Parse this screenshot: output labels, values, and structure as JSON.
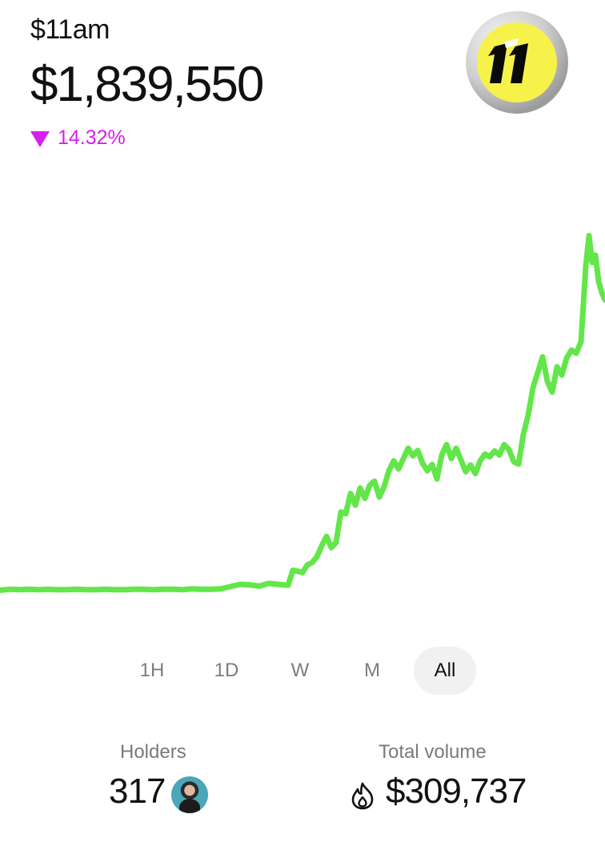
{
  "header": {
    "ticker": "$11am",
    "price": "$1,839,550",
    "change_pct": "14.32%",
    "change_direction": "down",
    "change_color": "#d81ff0",
    "logo_icon": "number-11-badge-icon"
  },
  "chart_data": {
    "type": "line",
    "line_color": "#63e64a",
    "grid": false,
    "x": [
      0,
      12,
      24,
      36,
      48,
      60,
      72,
      84,
      96,
      108,
      120,
      132,
      144,
      156,
      168,
      180,
      192,
      204,
      216,
      228,
      240,
      252,
      264,
      276,
      288,
      300,
      312,
      324,
      336,
      348,
      360,
      366,
      372,
      378,
      384,
      390,
      396,
      402,
      408,
      414,
      420,
      426,
      432,
      438,
      444,
      450,
      456,
      462,
      468,
      474,
      480,
      486,
      492,
      498,
      504,
      510,
      516,
      522,
      528,
      534,
      540,
      546,
      552,
      558,
      564,
      570,
      576,
      582,
      588,
      594,
      600,
      606,
      612,
      618,
      624,
      630,
      636,
      642,
      648,
      654,
      660,
      666,
      672,
      678,
      684,
      690,
      696,
      702,
      708,
      714,
      720,
      726,
      732,
      736,
      740,
      744,
      748,
      752,
      756
    ],
    "y": [
      4,
      4.2,
      4.1,
      4.2,
      4.1,
      4.2,
      4.1,
      4.1,
      4.2,
      4.1,
      4.1,
      4.2,
      4.1,
      4.1,
      4.2,
      4.2,
      4.1,
      4.2,
      4.2,
      4.1,
      4.3,
      4.2,
      4.2,
      4.3,
      4.8,
      5.3,
      5.2,
      4.9,
      5.5,
      5.3,
      5.1,
      8.4,
      8.2,
      7.9,
      9.6,
      10.1,
      11.4,
      13.8,
      15.9,
      13.4,
      14.6,
      21.3,
      20.9,
      25.4,
      22.8,
      26.6,
      24.3,
      27.2,
      28.1,
      24.6,
      26.9,
      30.4,
      32.6,
      30.8,
      33.1,
      35.4,
      33.7,
      34.9,
      32.1,
      30.4,
      31.8,
      28.6,
      33.9,
      36.2,
      33.1,
      35.4,
      32.8,
      30.2,
      31.7,
      29.8,
      32.6,
      34.1,
      33.5,
      34.8,
      33.9,
      36.2,
      35.1,
      32.4,
      31.9,
      38.5,
      42.7,
      48.8,
      52.1,
      55.6,
      50.2,
      47.8,
      53.4,
      51.6,
      55.3,
      57.1,
      56.4,
      58.9,
      75.7,
      82.4,
      76.5,
      78.1,
      72.3,
      69.8,
      68.2
    ],
    "ylim": [
      0,
      80
    ],
    "xlim": [
      0,
      756
    ],
    "xlabel": "",
    "ylabel": ""
  },
  "ranges": {
    "items": [
      "1H",
      "1D",
      "W",
      "M",
      "All"
    ],
    "active": "All"
  },
  "stats": {
    "holders_label": "Holders",
    "holders_value": "317",
    "volume_label": "Total volume",
    "volume_value": "$309,737"
  }
}
